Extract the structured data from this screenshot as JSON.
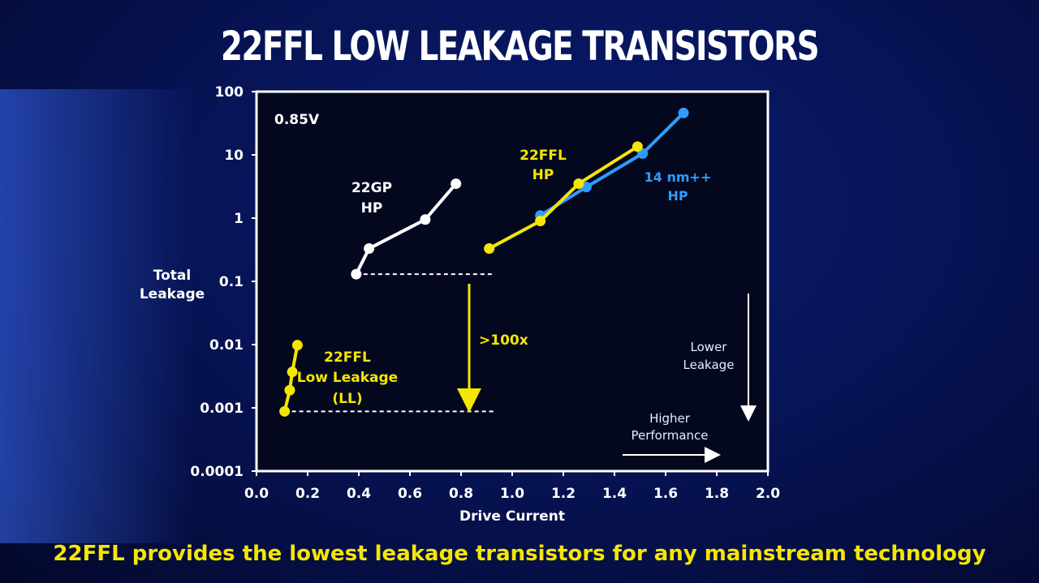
{
  "slide": {
    "title": "22FFL LOW LEAKAGE TRANSISTORS",
    "caption": "22FFL provides the lowest leakage transistors for any mainstream technology"
  },
  "colors": {
    "yellow": "#f4e600",
    "white": "#ffffff",
    "blue": "#2f9dff",
    "background": "#071457"
  },
  "chart_data": {
    "type": "line",
    "xlabel": "Drive Current",
    "ylabel": "Total Leakage",
    "ylabel_lines": [
      "Total",
      "Leakage"
    ],
    "xlim": [
      0.0,
      2.0
    ],
    "ylim": [
      0.0001,
      100
    ],
    "yscale": "log",
    "x_ticks": [
      "0.0",
      "0.2",
      "0.4",
      "0.6",
      "0.8",
      "1.0",
      "1.2",
      "1.4",
      "1.6",
      "1.8",
      "2.0"
    ],
    "y_ticks": [
      "100",
      "10",
      "1",
      "0.1",
      "0.01",
      "0.001",
      "0.0001"
    ],
    "grid": false,
    "series": [
      {
        "key": "gp",
        "color": "#ffffff",
        "x": [
          0.39,
          0.44,
          0.66,
          0.78
        ],
        "y": [
          0.13,
          0.33,
          0.95,
          3.5
        ]
      },
      {
        "key": "nm14",
        "color": "#2f9dff",
        "x": [
          1.11,
          1.29,
          1.51,
          1.67
        ],
        "y": [
          1.1,
          3.1,
          10.5,
          46
        ]
      },
      {
        "key": "ffl_hp",
        "color": "#f4e600",
        "x": [
          0.91,
          1.11,
          1.26,
          1.49
        ],
        "y": [
          0.33,
          0.9,
          3.5,
          13.5
        ]
      },
      {
        "key": "ffl_ll",
        "color": "#f4e600",
        "x": [
          0.11,
          0.13,
          0.14,
          0.16
        ],
        "y": [
          0.00088,
          0.0019,
          0.0037,
          0.0098
        ]
      }
    ],
    "reference_lines": [
      {
        "y": 0.13,
        "x_from": 0.39,
        "x_to": 0.93
      },
      {
        "y": 0.00088,
        "x_from": 0.11,
        "x_to": 0.93
      }
    ],
    "annotations": {
      "voltage": "0.85V",
      "gp_line1": "22GP",
      "gp_line2": "HP",
      "ffl_hp_line1": "22FFL",
      "ffl_hp_line2": "HP",
      "nm14_line1": "14 nm++",
      "nm14_line2": "HP",
      "ll_line1": "22FFL",
      "ll_line2": "Low Leakage",
      "ll_line3": "(LL)",
      "ratio": ">100x",
      "lower_line1": "Lower",
      "lower_line2": "Leakage",
      "higher_line1": "Higher",
      "higher_line2": "Performance"
    }
  }
}
